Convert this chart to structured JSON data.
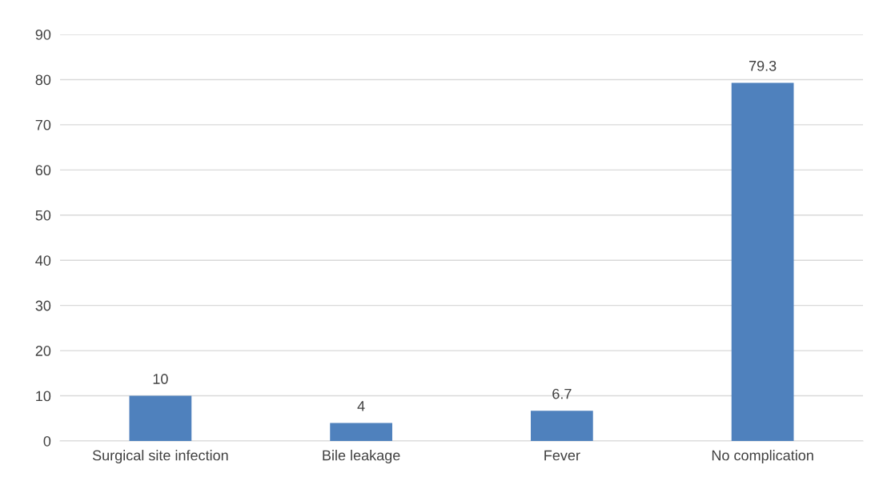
{
  "chart_data": {
    "type": "bar",
    "categories": [
      "Surgical site infection",
      "Bile leakage",
      "Fever",
      "No complication"
    ],
    "values": [
      10,
      4,
      6.7,
      79.3
    ],
    "color": "#4f81bd",
    "ylim": [
      0,
      90
    ],
    "yticks": [
      0,
      10,
      20,
      30,
      40,
      50,
      60,
      70,
      80,
      90
    ],
    "grid": "y",
    "data_labels": true
  }
}
